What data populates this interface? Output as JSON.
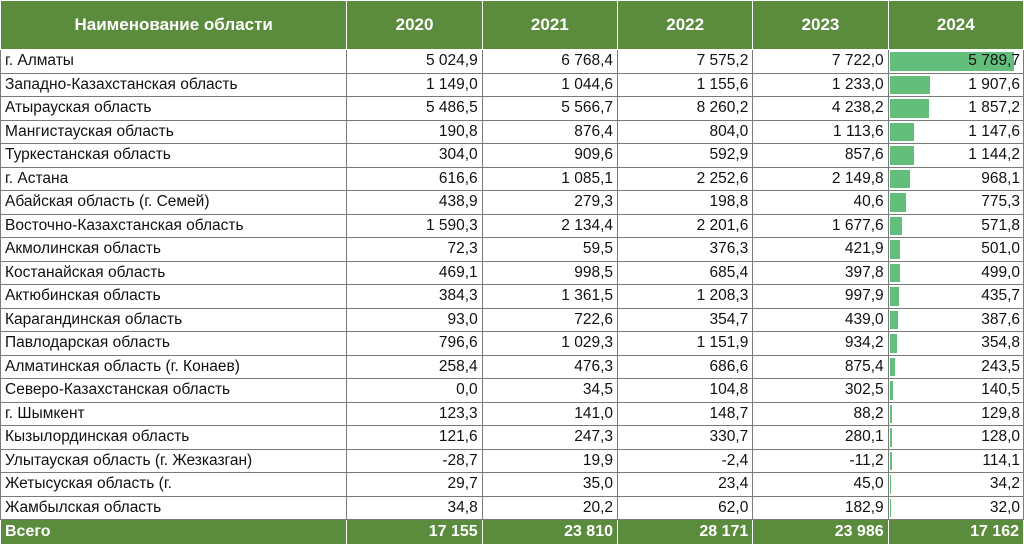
{
  "colors": {
    "header_bg": "#5b8b3c",
    "header_text": "#ffffff",
    "databar": "#63be7b"
  },
  "header": {
    "name": "Наименование области",
    "years": [
      "2020",
      "2021",
      "2022",
      "2023",
      "2024"
    ]
  },
  "rows": [
    {
      "name": "г. Алматы",
      "values": [
        "5 024,9",
        "6 768,4",
        "7 575,2",
        "7 722,0",
        "5 789,7"
      ],
      "v2024": 5789.7
    },
    {
      "name": "Западно-Казахстанская область",
      "values": [
        "1 149,0",
        "1 044,6",
        "1 155,6",
        "1 233,0",
        "1 907,6"
      ],
      "v2024": 1907.6
    },
    {
      "name": "Атырауская область",
      "values": [
        "5 486,5",
        "5 566,7",
        "8 260,2",
        "4 238,2",
        "1 857,2"
      ],
      "v2024": 1857.2
    },
    {
      "name": "Мангистауская область",
      "values": [
        "190,8",
        "876,4",
        "804,0",
        "1 113,6",
        "1 147,6"
      ],
      "v2024": 1147.6
    },
    {
      "name": "Туркестанская область",
      "values": [
        "304,0",
        "909,6",
        "592,9",
        "857,6",
        "1 144,2"
      ],
      "v2024": 1144.2
    },
    {
      "name": "г. Астана",
      "values": [
        "616,6",
        "1 085,1",
        "2 252,6",
        "2 149,8",
        "968,1"
      ],
      "v2024": 968.1
    },
    {
      "name": "Абайская область (г. Семей)",
      "values": [
        "438,9",
        "279,3",
        "198,8",
        "40,6",
        "775,3"
      ],
      "v2024": 775.3
    },
    {
      "name": "Восточно-Казахстанская область",
      "values": [
        "1 590,3",
        "2 134,4",
        "2 201,6",
        "1 677,6",
        "571,8"
      ],
      "v2024": 571.8
    },
    {
      "name": "Акмолинская область",
      "values": [
        "72,3",
        "59,5",
        "376,3",
        "421,9",
        "501,0"
      ],
      "v2024": 501.0
    },
    {
      "name": "Костанайская область",
      "values": [
        "469,1",
        "998,5",
        "685,4",
        "397,8",
        "499,0"
      ],
      "v2024": 499.0
    },
    {
      "name": "Актюбинская область",
      "values": [
        "384,3",
        "1 361,5",
        "1 208,3",
        "997,9",
        "435,7"
      ],
      "v2024": 435.7
    },
    {
      "name": "Карагандинская область",
      "values": [
        "93,0",
        "722,6",
        "354,7",
        "439,0",
        "387,6"
      ],
      "v2024": 387.6
    },
    {
      "name": "Павлодарская область",
      "values": [
        "796,6",
        "1 029,3",
        "1 151,9",
        "934,2",
        "354,8"
      ],
      "v2024": 354.8
    },
    {
      "name": "Алматинская область (г. Конаев)",
      "values": [
        "258,4",
        "476,3",
        "686,6",
        "875,4",
        "243,5"
      ],
      "v2024": 243.5
    },
    {
      "name": "Северо-Казахстанская область",
      "values": [
        "0,0",
        "34,5",
        "104,8",
        "302,5",
        "140,5"
      ],
      "v2024": 140.5
    },
    {
      "name": "г. Шымкент",
      "values": [
        "123,3",
        "141,0",
        "148,7",
        "88,2",
        "129,8"
      ],
      "v2024": 129.8
    },
    {
      "name": "Кызылординская область",
      "values": [
        "121,6",
        "247,3",
        "330,7",
        "280,1",
        "128,0"
      ],
      "v2024": 128.0
    },
    {
      "name": "Улытауская область (г. Жезказган)",
      "values": [
        "-28,7",
        "19,9",
        "-2,4",
        "-11,2",
        "114,1"
      ],
      "v2024": 114.1
    },
    {
      "name": "Жетысуская область (г.",
      "values": [
        "29,7",
        "35,0",
        "23,4",
        "45,0",
        "34,2"
      ],
      "v2024": 34.2
    },
    {
      "name": "Жамбылская область",
      "values": [
        "34,8",
        "20,2",
        "62,0",
        "182,9",
        "32,0"
      ],
      "v2024": 32.0
    }
  ],
  "total": {
    "label": "Всего",
    "values": [
      "17 155",
      "23 810",
      "28 171",
      "23 986",
      "17 162"
    ]
  }
}
